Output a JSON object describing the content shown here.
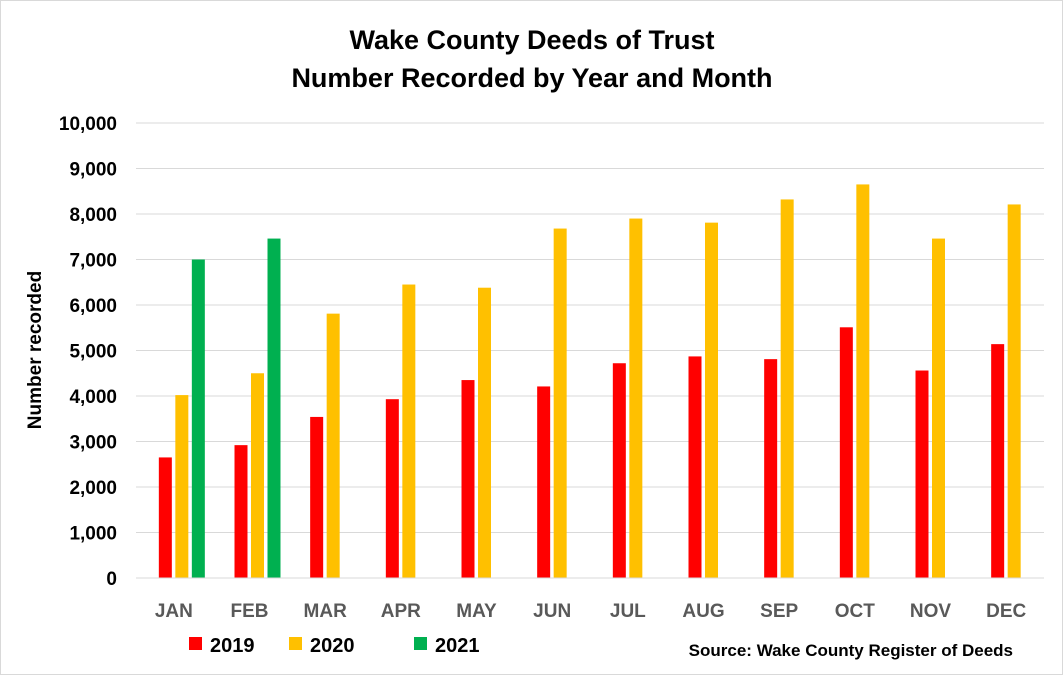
{
  "chart_data": {
    "type": "bar",
    "title": "Wake County Deeds of Trust",
    "subtitle": "Number Recorded by Year and Month",
    "ylabel": "Number recorded",
    "xlabel": "",
    "ylim": [
      0,
      10000
    ],
    "ytick_step": 1000,
    "yticks": [
      "0",
      "1,000",
      "2,000",
      "3,000",
      "4,000",
      "5,000",
      "6,000",
      "7,000",
      "8,000",
      "9,000",
      "10,000"
    ],
    "grid": true,
    "legend_placement": "bottom-left",
    "categories": [
      "JAN",
      "FEB",
      "MAR",
      "APR",
      "MAY",
      "JUN",
      "JUL",
      "AUG",
      "SEP",
      "OCT",
      "NOV",
      "DEC"
    ],
    "series": [
      {
        "name": "2019",
        "color": "#ff0000",
        "values": [
          2650,
          2920,
          3540,
          3930,
          4350,
          4210,
          4720,
          4870,
          4810,
          5510,
          4560,
          5140
        ]
      },
      {
        "name": "2020",
        "color": "#ffc000",
        "values": [
          4020,
          4500,
          5810,
          6450,
          6380,
          7680,
          7900,
          7810,
          8320,
          8650,
          7460,
          8210
        ]
      },
      {
        "name": "2021",
        "color": "#00b050",
        "values": [
          7000,
          7460,
          null,
          null,
          null,
          null,
          null,
          null,
          null,
          null,
          null,
          null
        ]
      }
    ],
    "source": "Source: Wake County Register of Deeds"
  }
}
